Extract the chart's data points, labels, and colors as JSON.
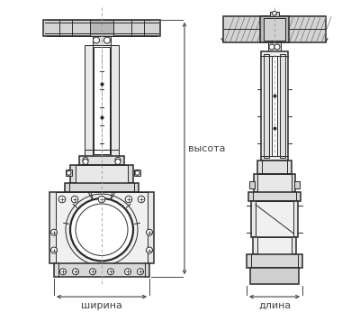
{
  "bg_color": "#ffffff",
  "line_color": "#2a2a2a",
  "dim_line_color": "#444444",
  "fill_light": "#d4d4d4",
  "fill_medium": "#b8b8b8",
  "fill_hatch": "#707070",
  "label_shirina": "ширина",
  "label_dlina": "длина",
  "label_visota": "высота",
  "label_fontsize": 8.0,
  "fig_width": 4.0,
  "fig_height": 3.46
}
